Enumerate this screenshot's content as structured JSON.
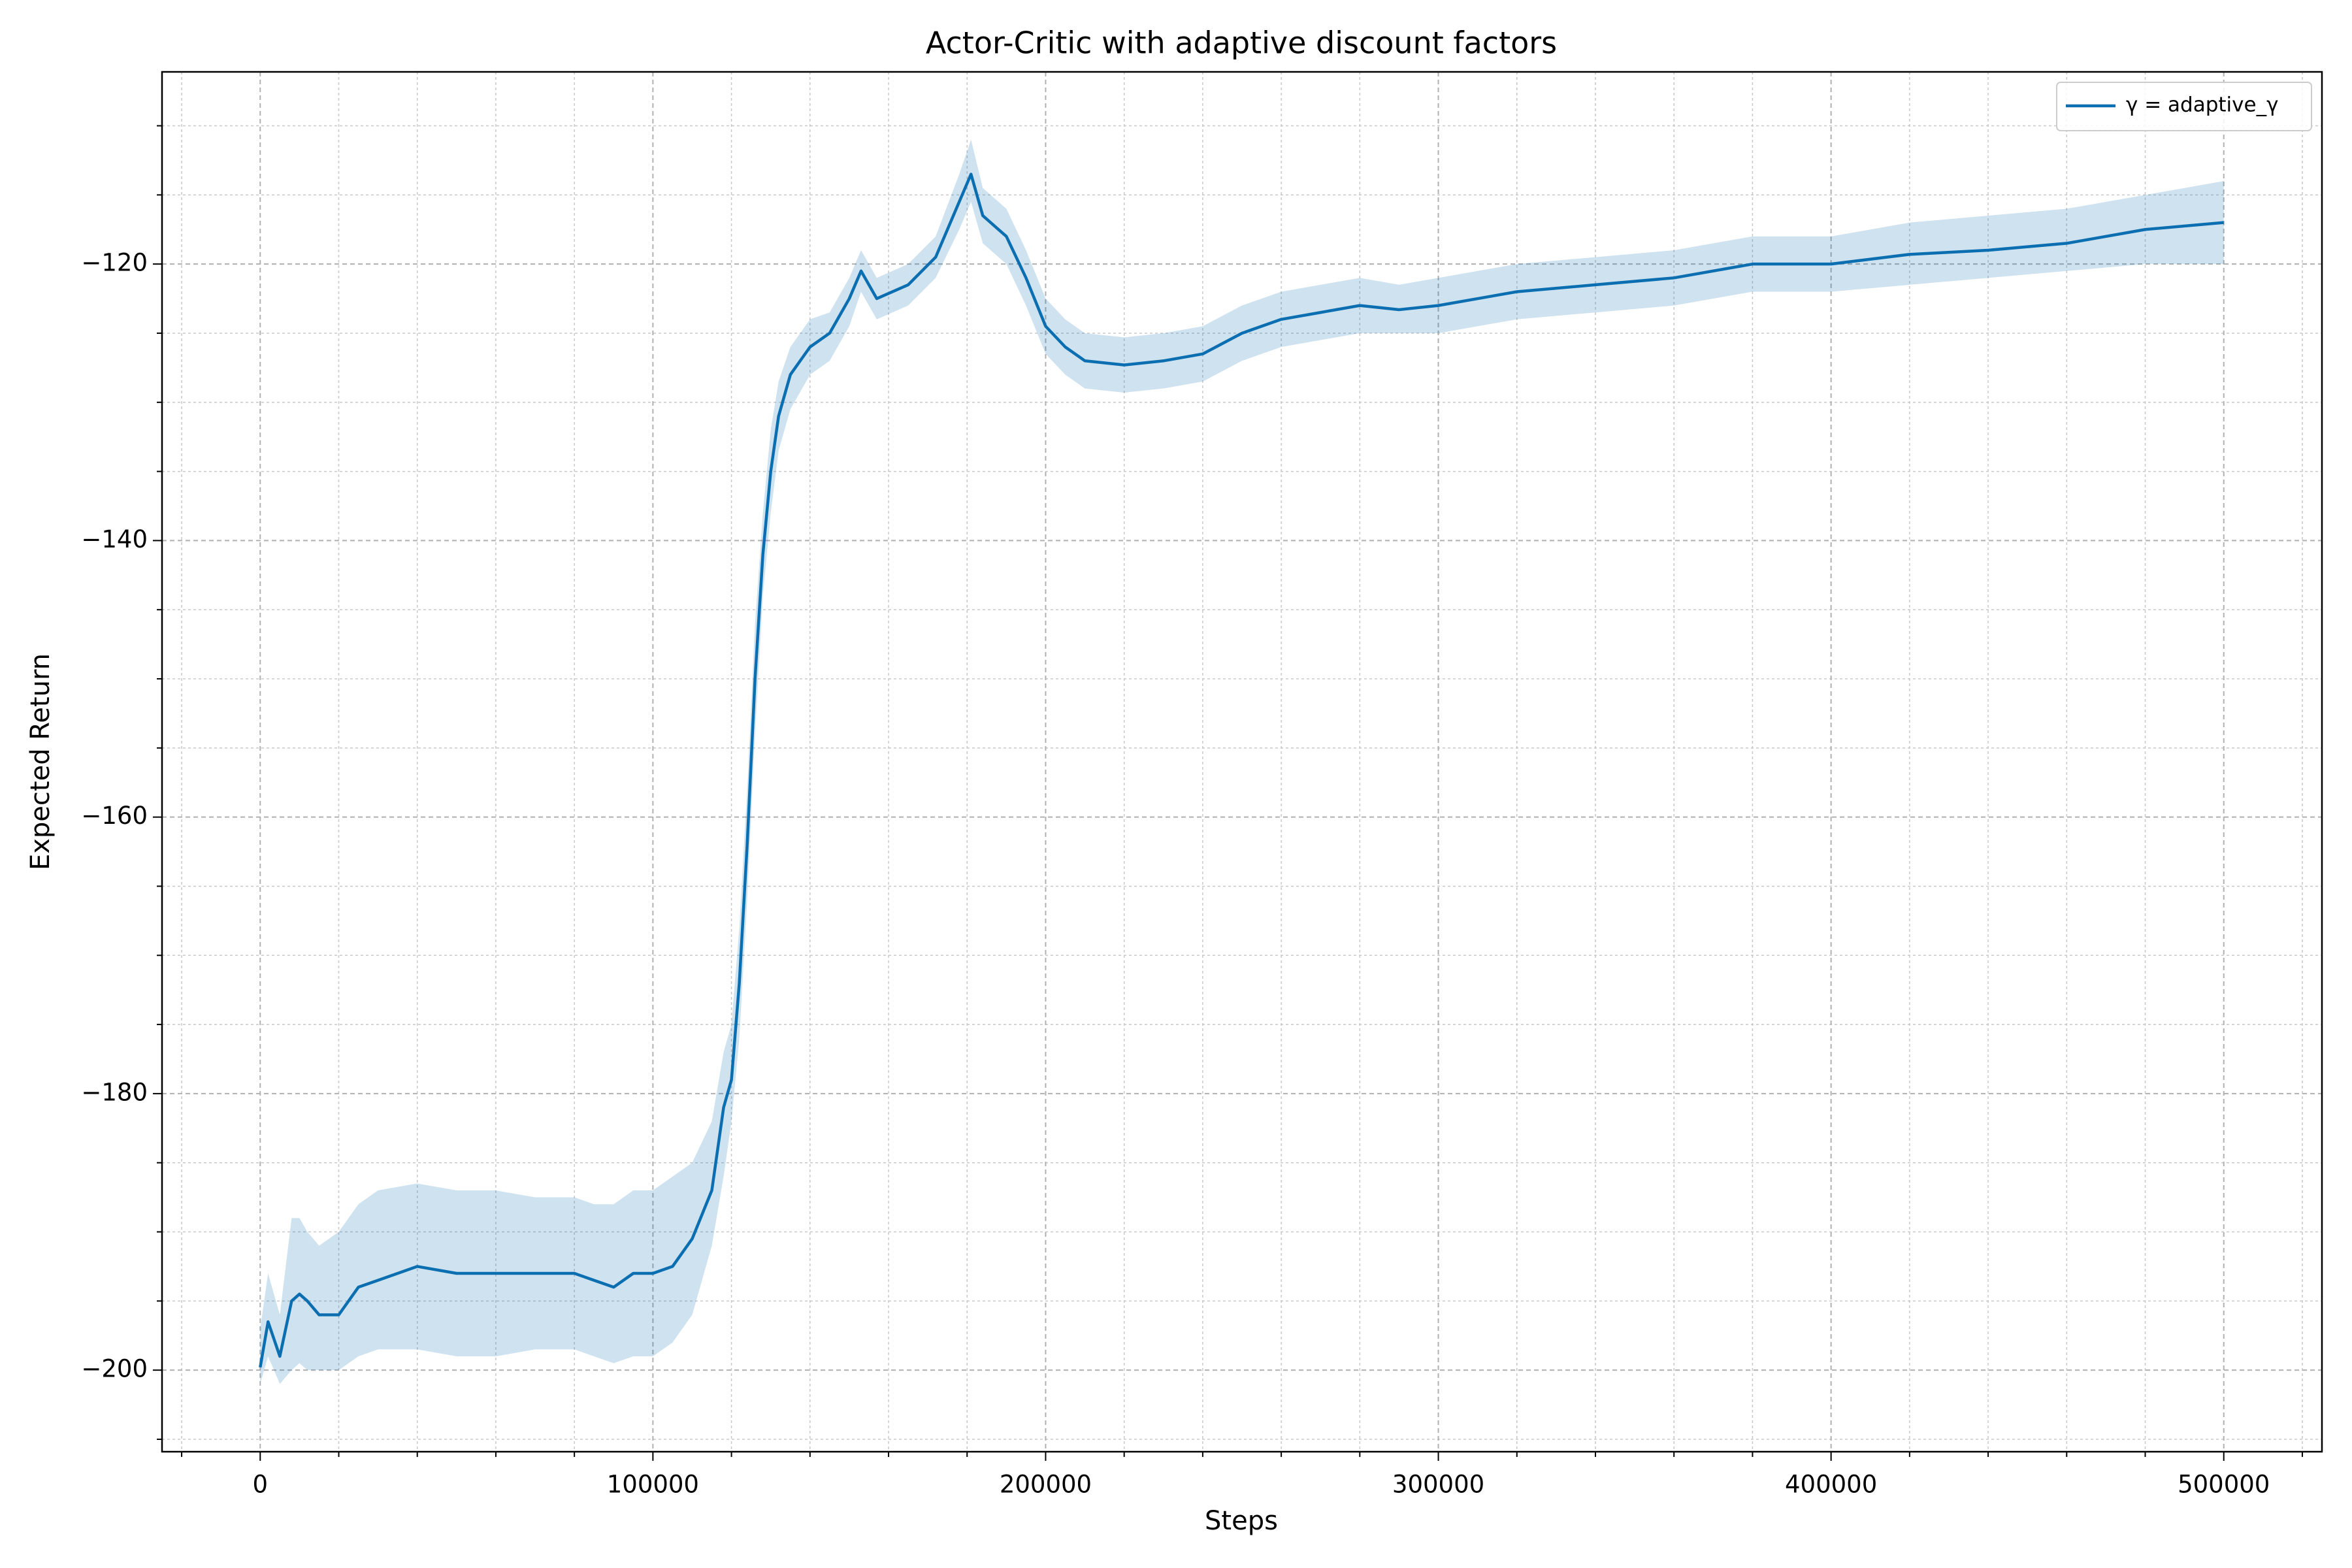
{
  "chart_data": {
    "type": "line",
    "title": "Actor-Critic with adaptive discount factors",
    "xlabel": "Steps",
    "ylabel": "Expected Return",
    "xlim": [
      -25000,
      525000
    ],
    "ylim": [
      -205.9,
      -106.1
    ],
    "xticks": [
      0,
      100000,
      200000,
      300000,
      400000,
      500000
    ],
    "yticks": [
      {
        "value": -200,
        "label": "−200"
      },
      {
        "value": -180,
        "label": "−180"
      },
      {
        "value": -160,
        "label": "−160"
      },
      {
        "value": -140,
        "label": "−140"
      },
      {
        "value": -120,
        "label": "−120"
      }
    ],
    "xminorticks": [
      -20000,
      20000,
      40000,
      60000,
      80000,
      120000,
      140000,
      160000,
      180000,
      220000,
      240000,
      260000,
      280000,
      320000,
      340000,
      360000,
      380000,
      420000,
      440000,
      460000,
      480000,
      520000
    ],
    "yminorticks": [
      -205,
      -195,
      -190,
      -185,
      -175,
      -170,
      -165,
      -155,
      -150,
      -145,
      -135,
      -130,
      -125,
      -115,
      -110
    ],
    "grid": true,
    "legend": "upper right",
    "series": [
      {
        "name": "γ = adaptive_γ",
        "color": "#0a6eb0",
        "x": [
          0,
          2000,
          5000,
          8000,
          10000,
          12000,
          15000,
          20000,
          25000,
          30000,
          40000,
          50000,
          60000,
          70000,
          80000,
          85000,
          90000,
          95000,
          100000,
          105000,
          110000,
          115000,
          118000,
          120000,
          122000,
          124000,
          126000,
          128000,
          130000,
          132000,
          135000,
          140000,
          145000,
          150000,
          153000,
          157000,
          165000,
          172000,
          178000,
          181000,
          184000,
          190000,
          195000,
          200000,
          205000,
          210000,
          220000,
          230000,
          240000,
          250000,
          260000,
          270000,
          280000,
          290000,
          300000,
          320000,
          340000,
          360000,
          380000,
          400000,
          420000,
          440000,
          460000,
          480000,
          500000
        ],
        "values": [
          -199.8,
          -196.5,
          -199,
          -195,
          -194.5,
          -195,
          -196,
          -196,
          -194,
          -193.5,
          -192.5,
          -193,
          -193,
          -193,
          -193,
          -193.5,
          -194,
          -193,
          -193,
          -192.5,
          -190.5,
          -187,
          -181,
          -179,
          -172,
          -162,
          -150,
          -141,
          -135,
          -131,
          -128,
          -126,
          -125,
          -122.5,
          -120.5,
          -122.5,
          -121.5,
          -119.5,
          -115.5,
          -113.5,
          -116.5,
          -118,
          -121,
          -124.5,
          -126,
          -127,
          -127.3,
          -127,
          -126.5,
          -125,
          -124,
          -123.5,
          -123,
          -123.3,
          -123,
          -122,
          -121.5,
          -121,
          -120,
          -120,
          -119.3,
          -119,
          -118.5,
          -117.5,
          -117
        ],
        "lower": [
          -201,
          -199,
          -201,
          -200,
          -199.5,
          -200,
          -200,
          -200,
          -199,
          -198.5,
          -198.5,
          -199,
          -199,
          -198.5,
          -198.5,
          -199,
          -199.5,
          -199,
          -199,
          -198,
          -196,
          -191,
          -186,
          -182,
          -176,
          -166,
          -154,
          -144,
          -138,
          -133.5,
          -130.5,
          -128,
          -127,
          -124.5,
          -122,
          -124,
          -123,
          -121,
          -117.5,
          -115.5,
          -118.5,
          -120,
          -123,
          -126.5,
          -128,
          -129,
          -129.3,
          -129,
          -128.5,
          -127,
          -126,
          -125.5,
          -125,
          -125,
          -125,
          -124,
          -123.5,
          -123,
          -122,
          -122,
          -121.5,
          -121,
          -120.5,
          -120,
          -120
        ],
        "upper": [
          -197,
          -193,
          -196,
          -189,
          -189,
          -190,
          -191,
          -190,
          -188,
          -187,
          -186.5,
          -187,
          -187,
          -187.5,
          -187.5,
          -188,
          -188,
          -187,
          -187,
          -186,
          -185,
          -182,
          -177,
          -175,
          -168,
          -158,
          -146,
          -138,
          -132,
          -128.5,
          -126,
          -124,
          -123.5,
          -121,
          -119,
          -121,
          -120,
          -118,
          -113.5,
          -111,
          -114.5,
          -116,
          -119,
          -122.5,
          -124,
          -125,
          -125.3,
          -125,
          -124.5,
          -123,
          -122,
          -121.5,
          -121,
          -121.5,
          -121,
          -120,
          -119.5,
          -119,
          -118,
          -118,
          -117,
          -116.5,
          -116,
          -115,
          -114
        ]
      }
    ]
  }
}
